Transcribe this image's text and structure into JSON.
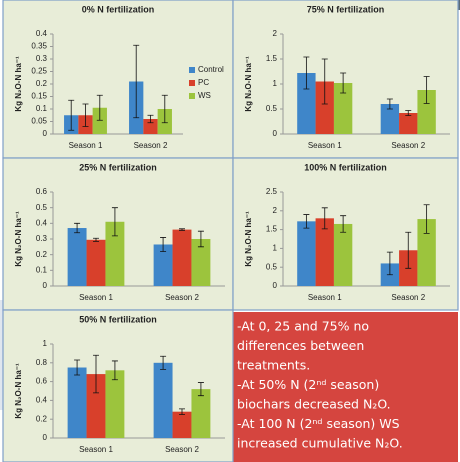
{
  "chart_data": [
    {
      "type": "bar",
      "title": "0% N fertilization",
      "y_label": "Kg N₂O-N ha⁻¹",
      "categories": [
        "Season 1",
        "Season 2"
      ],
      "ylim": [
        0,
        0.4
      ],
      "yticks": [
        0,
        0.05,
        0.1,
        0.15,
        0.2,
        0.25,
        0.3,
        0.35,
        0.4
      ],
      "legend": "right",
      "series": [
        {
          "name": "Control",
          "color": "#3f86c9",
          "values": [
            0.075,
            0.21
          ],
          "errors": [
            0.06,
            0.145
          ]
        },
        {
          "name": "PC",
          "color": "#d8402b",
          "values": [
            0.075,
            0.06
          ],
          "errors": [
            0.045,
            0.015
          ]
        },
        {
          "name": "WS",
          "color": "#9cc43d",
          "values": [
            0.105,
            0.1
          ],
          "errors": [
            0.05,
            0.055
          ]
        }
      ]
    },
    {
      "type": "bar",
      "title": "75% N fertilization",
      "y_label": "Kg N₂O-N ha⁻¹",
      "categories": [
        "Season 1",
        "Season 2"
      ],
      "ylim": [
        0,
        2
      ],
      "yticks": [
        0,
        0.5,
        1,
        1.5,
        2
      ],
      "series": [
        {
          "color": "#3f86c9",
          "values": [
            1.22,
            0.6
          ],
          "errors": [
            0.32,
            0.1
          ]
        },
        {
          "color": "#d8402b",
          "values": [
            1.05,
            0.42
          ],
          "errors": [
            0.45,
            0.05
          ]
        },
        {
          "color": "#9cc43d",
          "values": [
            1.02,
            0.88
          ],
          "errors": [
            0.2,
            0.27
          ]
        }
      ]
    },
    {
      "type": "bar",
      "title": "25% N fertilization",
      "y_label": "Kg N₂O-N ha⁻¹",
      "categories": [
        "Season 1",
        "Season 2"
      ],
      "ylim": [
        0,
        0.6
      ],
      "yticks": [
        0,
        0.1,
        0.2,
        0.3,
        0.4,
        0.5,
        0.6
      ],
      "series": [
        {
          "color": "#3f86c9",
          "values": [
            0.37,
            0.265
          ],
          "errors": [
            0.03,
            0.045
          ]
        },
        {
          "color": "#d8402b",
          "values": [
            0.295,
            0.36
          ],
          "errors": [
            0.01,
            0.005
          ]
        },
        {
          "color": "#9cc43d",
          "values": [
            0.41,
            0.3
          ],
          "errors": [
            0.09,
            0.05
          ]
        }
      ]
    },
    {
      "type": "bar",
      "title": "100% N fertilization",
      "y_label": "Kg N₂O-N ha⁻¹",
      "categories": [
        "Season 1",
        "Season 2"
      ],
      "ylim": [
        0,
        2.5
      ],
      "yticks": [
        0,
        0.5,
        1,
        1.5,
        2,
        2.5
      ],
      "series": [
        {
          "color": "#3f86c9",
          "values": [
            1.72,
            0.6
          ],
          "errors": [
            0.18,
            0.3
          ]
        },
        {
          "color": "#d8402b",
          "values": [
            1.8,
            0.95
          ],
          "errors": [
            0.28,
            0.48
          ]
        },
        {
          "color": "#9cc43d",
          "values": [
            1.65,
            1.78
          ],
          "errors": [
            0.22,
            0.38
          ]
        }
      ]
    },
    {
      "type": "bar",
      "title": "50% N fertilization",
      "y_label": "Kg N₂O-N ha⁻¹",
      "categories": [
        "Season 1",
        "Season 2"
      ],
      "ylim": [
        0,
        1
      ],
      "yticks": [
        0,
        0.2,
        0.4,
        0.6,
        0.8,
        1
      ],
      "series": [
        {
          "color": "#3f86c9",
          "values": [
            0.75,
            0.8
          ],
          "errors": [
            0.08,
            0.07
          ]
        },
        {
          "color": "#d8402b",
          "values": [
            0.68,
            0.28
          ],
          "errors": [
            0.2,
            0.03
          ]
        },
        {
          "color": "#9cc43d",
          "values": [
            0.72,
            0.52
          ],
          "errors": [
            0.1,
            0.07
          ]
        }
      ]
    }
  ],
  "notes": [
    "-At 0, 25 and 75% no",
    "differences between",
    "treatments.",
    "-At 50% N (2ⁿᵈ season)",
    "biochars decreased N₂O.",
    "-At 100 N (2ⁿᵈ season) WS",
    "increased cumulative N₂O."
  ]
}
